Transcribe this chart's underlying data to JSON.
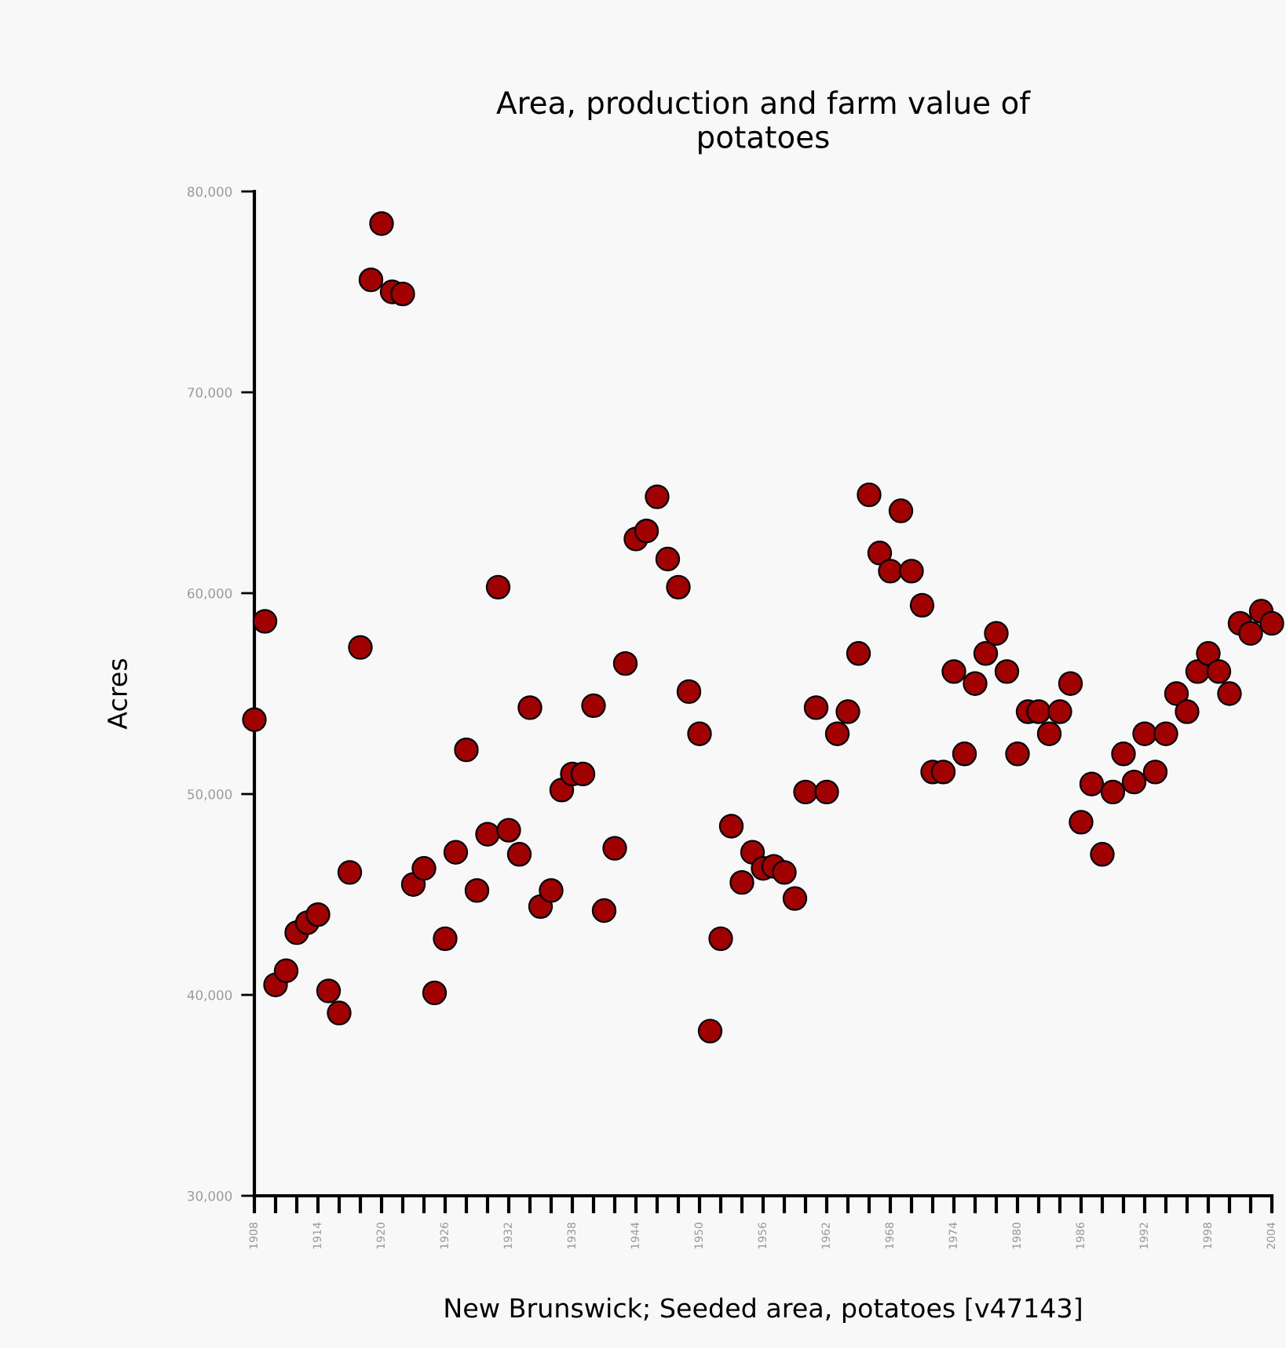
{
  "chart_data": {
    "type": "scatter",
    "title": "Area, production and farm value of\npotatoes",
    "xlabel": "New Brunswick; Seeded area, potatoes [v47143]",
    "ylabel": "Acres",
    "x": [
      1908,
      1909,
      1910,
      1911,
      1912,
      1913,
      1914,
      1915,
      1916,
      1917,
      1918,
      1919,
      1920,
      1921,
      1922,
      1923,
      1924,
      1925,
      1926,
      1927,
      1928,
      1929,
      1930,
      1931,
      1932,
      1933,
      1934,
      1935,
      1936,
      1937,
      1938,
      1939,
      1940,
      1941,
      1942,
      1943,
      1944,
      1945,
      1946,
      1947,
      1948,
      1949,
      1950,
      1951,
      1952,
      1953,
      1954,
      1955,
      1956,
      1957,
      1958,
      1959,
      1960,
      1961,
      1962,
      1963,
      1964,
      1965,
      1966,
      1967,
      1968,
      1969,
      1970,
      1971,
      1972,
      1973,
      1974,
      1975,
      1976,
      1977,
      1978,
      1979,
      1980,
      1981,
      1982,
      1983,
      1984,
      1985,
      1986,
      1987,
      1988,
      1989,
      1990,
      1991,
      1992,
      1993,
      1994,
      1995,
      1996,
      1997,
      1998,
      1999,
      2000,
      2001,
      2002,
      2003,
      2004
    ],
    "series": [
      {
        "color": "#a00000",
        "values": [
          53700,
          58600,
          40500,
          41200,
          43100,
          43600,
          44000,
          40200,
          39100,
          46100,
          57300,
          75600,
          78400,
          75000,
          74900,
          45500,
          46300,
          40100,
          42800,
          47100,
          52200,
          45200,
          48000,
          60300,
          48200,
          47000,
          54300,
          44400,
          45200,
          50200,
          51000,
          51000,
          54400,
          44200,
          47300,
          56500,
          62700,
          63100,
          64800,
          61700,
          60300,
          55100,
          53000,
          38200,
          42800,
          48400,
          45600,
          47100,
          46300,
          46400,
          46100,
          44800,
          50100,
          54300,
          50100,
          53000,
          54100,
          57000,
          64900,
          62000,
          61100,
          64100,
          61100,
          59400,
          51100,
          51100,
          56100,
          52000,
          55500,
          57000,
          58000,
          56100,
          52000,
          54100,
          54100,
          53000,
          54100,
          55500,
          48600,
          50500,
          47000,
          50100,
          52000,
          50600,
          53000,
          51100,
          53000,
          55000,
          54100,
          56100,
          57000,
          56100,
          55000,
          58500,
          58000,
          59100,
          58500
        ]
      }
    ],
    "marker": "circle",
    "xlim": [
      1908,
      2004
    ],
    "xticks": [
      1908,
      {
        "value": 1910,
        "label": null
      },
      {
        "value": 1912,
        "label": null
      },
      1914,
      {
        "value": 1916,
        "label": null
      },
      {
        "value": 1918,
        "label": null
      },
      1920,
      {
        "value": 1922,
        "label": null
      },
      {
        "value": 1924,
        "label": null
      },
      1926,
      {
        "value": 1928,
        "label": null
      },
      {
        "value": 1930,
        "label": null
      },
      1932,
      {
        "value": 1934,
        "label": null
      },
      {
        "value": 1936,
        "label": null
      },
      1938,
      {
        "value": 1940,
        "label": null
      },
      {
        "value": 1942,
        "label": null
      },
      1944,
      {
        "value": 1946,
        "label": null
      },
      {
        "value": 1948,
        "label": null
      },
      1950,
      {
        "value": 1952,
        "label": null
      },
      {
        "value": 1954,
        "label": null
      },
      1956,
      {
        "value": 1958,
        "label": null
      },
      {
        "value": 1960,
        "label": null
      },
      1962,
      {
        "value": 1964,
        "label": null
      },
      {
        "value": 1966,
        "label": null
      },
      1968,
      {
        "value": 1970,
        "label": null
      },
      {
        "value": 1972,
        "label": null
      },
      1974,
      {
        "value": 1976,
        "label": null
      },
      {
        "value": 1978,
        "label": null
      },
      1980,
      {
        "value": 1982,
        "label": null
      },
      {
        "value": 1984,
        "label": null
      },
      1986,
      {
        "value": 1988,
        "label": null
      },
      {
        "value": 1990,
        "label": null
      },
      1992,
      {
        "value": 1994,
        "label": null
      },
      {
        "value": 1996,
        "label": null
      },
      1998,
      {
        "value": 2000,
        "label": null
      },
      {
        "value": 2002,
        "label": null
      },
      2004
    ],
    "ylim": [
      30000,
      80000
    ],
    "yticks": [
      {
        "value": 30000,
        "label": "30,000"
      },
      {
        "value": 40000,
        "label": "40,000"
      },
      {
        "value": 50000,
        "label": "50,000"
      },
      {
        "value": 60000,
        "label": "60,000"
      },
      {
        "value": 70000,
        "label": "70,000"
      },
      {
        "value": 80000,
        "label": "80,000"
      }
    ],
    "grid": false,
    "legend": false
  }
}
